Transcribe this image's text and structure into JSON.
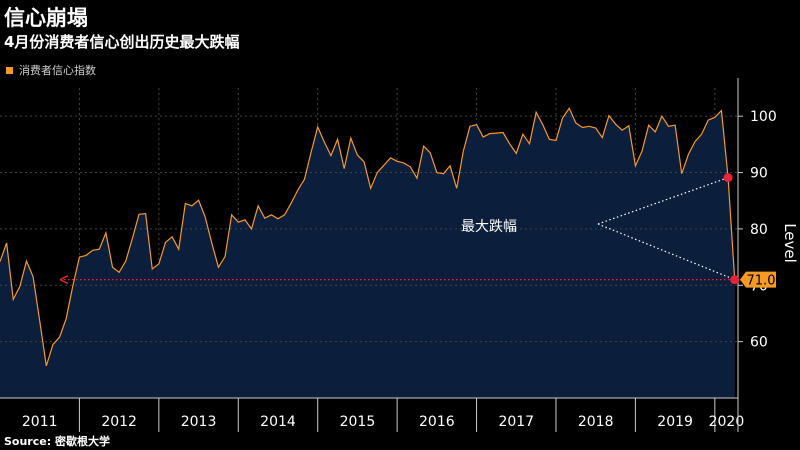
{
  "title": "信心崩塌",
  "subtitle": "4月份消费者信心创出历史最大跌幅",
  "source": "Source: 密歇根大学",
  "colors": {
    "background": "#000000",
    "line": "#f59a23",
    "area_fill": "#0b1e3b",
    "marker": "#e8243a",
    "annotation_line": "#ffffff",
    "grid": "#444444"
  },
  "chart_data": {
    "type": "area",
    "title": "信心崩塌",
    "subtitle": "4月份消费者信心创出历史最大跌幅",
    "ylabel": "Level",
    "ylim": [
      50,
      105
    ],
    "yticks": [
      60,
      70,
      80,
      90,
      100
    ],
    "grid": "horizontal dotted",
    "legend": "top-left",
    "x_range": [
      "2011-01",
      "2020-04"
    ],
    "xticks": [
      "2011",
      "2012",
      "2013",
      "2014",
      "2015",
      "2016",
      "2017",
      "2018",
      "2019",
      "2020"
    ],
    "series": [
      {
        "name": "消费者信心指数",
        "x": [
          "2011-01",
          "2011-02",
          "2011-03",
          "2011-04",
          "2011-05",
          "2011-06",
          "2011-07",
          "2011-08",
          "2011-09",
          "2011-10",
          "2011-11",
          "2011-12",
          "2012-01",
          "2012-02",
          "2012-03",
          "2012-04",
          "2012-05",
          "2012-06",
          "2012-07",
          "2012-08",
          "2012-09",
          "2012-10",
          "2012-11",
          "2012-12",
          "2013-01",
          "2013-02",
          "2013-03",
          "2013-04",
          "2013-05",
          "2013-06",
          "2013-07",
          "2013-08",
          "2013-09",
          "2013-10",
          "2013-11",
          "2013-12",
          "2014-01",
          "2014-02",
          "2014-03",
          "2014-04",
          "2014-05",
          "2014-06",
          "2014-07",
          "2014-08",
          "2014-09",
          "2014-10",
          "2014-11",
          "2014-12",
          "2015-01",
          "2015-02",
          "2015-03",
          "2015-04",
          "2015-05",
          "2015-06",
          "2015-07",
          "2015-08",
          "2015-09",
          "2015-10",
          "2015-11",
          "2015-12",
          "2016-01",
          "2016-02",
          "2016-03",
          "2016-04",
          "2016-05",
          "2016-06",
          "2016-07",
          "2016-08",
          "2016-09",
          "2016-10",
          "2016-11",
          "2016-12",
          "2017-01",
          "2017-02",
          "2017-03",
          "2017-04",
          "2017-05",
          "2017-06",
          "2017-07",
          "2017-08",
          "2017-09",
          "2017-10",
          "2017-11",
          "2017-12",
          "2018-01",
          "2018-02",
          "2018-03",
          "2018-04",
          "2018-05",
          "2018-06",
          "2018-07",
          "2018-08",
          "2018-09",
          "2018-10",
          "2018-11",
          "2018-12",
          "2019-01",
          "2019-02",
          "2019-03",
          "2019-04",
          "2019-05",
          "2019-06",
          "2019-07",
          "2019-08",
          "2019-09",
          "2019-10",
          "2019-11",
          "2019-12",
          "2020-01",
          "2020-02",
          "2020-03",
          "2020-04"
        ],
        "values": [
          74.2,
          77.5,
          67.5,
          69.8,
          74.3,
          71.5,
          63.7,
          55.7,
          59.5,
          60.8,
          64.1,
          69.9,
          75.0,
          75.3,
          76.2,
          76.4,
          79.3,
          73.2,
          72.3,
          74.3,
          78.3,
          82.6,
          82.7,
          72.9,
          73.8,
          77.6,
          78.6,
          76.4,
          84.5,
          84.1,
          85.1,
          82.1,
          77.5,
          73.2,
          75.1,
          82.5,
          81.2,
          81.6,
          80.0,
          84.1,
          81.9,
          82.5,
          81.8,
          82.5,
          84.6,
          86.9,
          88.8,
          93.6,
          98.1,
          95.4,
          93.0,
          95.9,
          90.7,
          96.1,
          93.1,
          91.9,
          87.2,
          90.0,
          91.3,
          92.6,
          92.0,
          91.7,
          91.0,
          89.0,
          94.7,
          93.5,
          90.0,
          89.8,
          91.2,
          87.2,
          93.8,
          98.2,
          98.5,
          96.3,
          96.9,
          97.0,
          97.1,
          95.1,
          93.4,
          96.8,
          95.1,
          100.7,
          98.5,
          95.9,
          95.7,
          99.7,
          101.4,
          98.8,
          98.0,
          98.2,
          97.9,
          96.2,
          100.1,
          98.6,
          97.5,
          98.3,
          91.2,
          93.8,
          98.4,
          97.2,
          100.0,
          98.2,
          98.4,
          89.8,
          93.2,
          95.5,
          96.8,
          99.3,
          99.8,
          101.0,
          89.1,
          71.0
        ]
      }
    ],
    "annotations": [
      {
        "text": "最大跌幅",
        "type": "callout",
        "points": [
          {
            "x": "2020-03",
            "y": 89.1
          },
          {
            "x": "2020-04",
            "y": 71.0
          }
        ]
      },
      {
        "text": "71.0",
        "type": "last-value-label",
        "x": "2020-04",
        "y": 71.0
      }
    ]
  }
}
